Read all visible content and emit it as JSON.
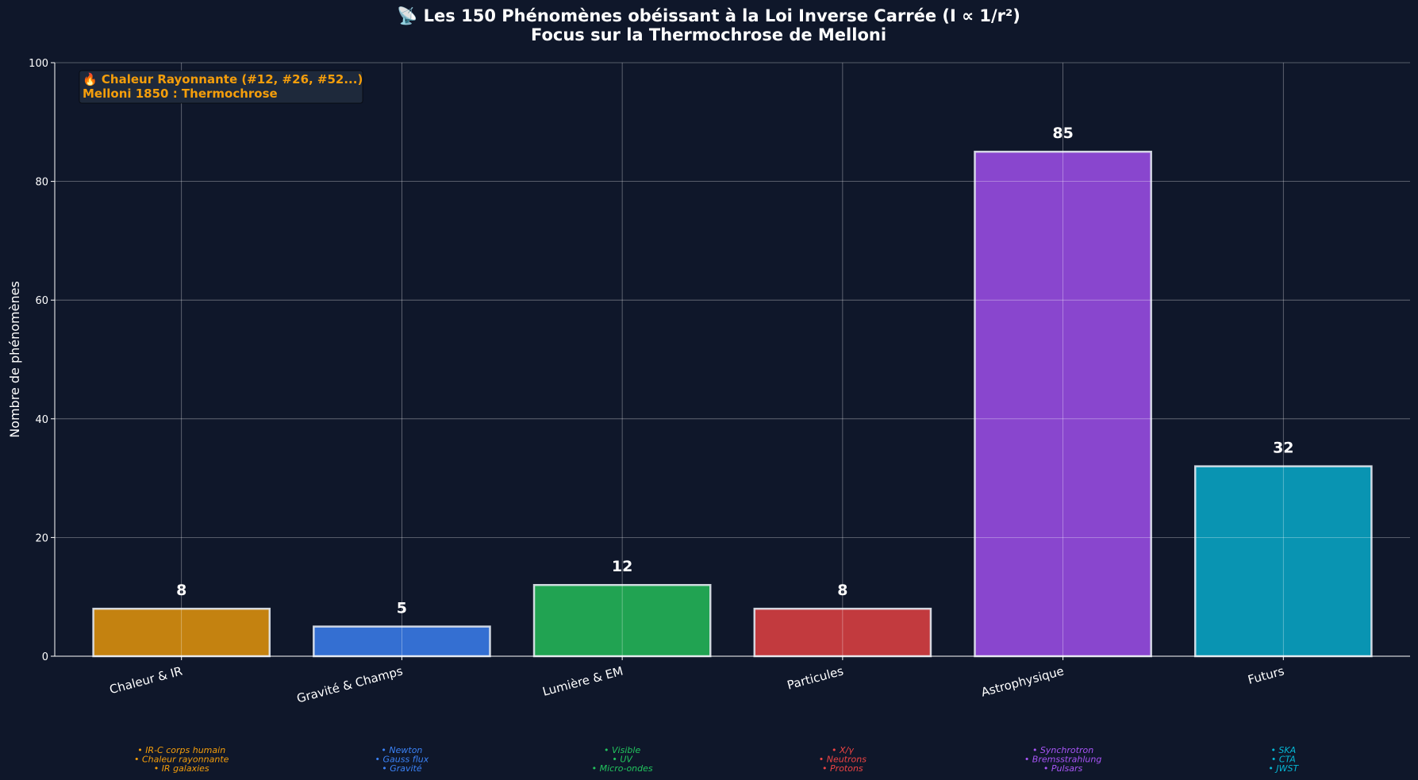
{
  "chart_data": {
    "type": "bar",
    "title": "📡 Les 150 Phénomènes obéissant à la Loi Inverse Carrée (I ∝ 1/r²)",
    "subtitle": "Focus sur la Thermochrose de Melloni",
    "ylabel": "Nombre de phénomènes",
    "ylim": [
      0,
      100
    ],
    "yticks": [
      "0",
      "20",
      "40",
      "60",
      "80",
      "100"
    ],
    "grid": true,
    "categories": [
      "Chaleur & IR",
      "Gravité & Champs",
      "Lumière & EM",
      "Particules",
      "Astrophysique",
      "Futurs"
    ],
    "values": [
      8,
      5,
      12,
      8,
      85,
      32
    ],
    "value_labels": [
      "8",
      "5",
      "12",
      "8",
      "85",
      "32"
    ],
    "colors": [
      "#c48210",
      "#346fd2",
      "#21a352",
      "#c23a3e",
      "#8946ce",
      "#0994b2"
    ],
    "sublabel_colors": [
      "#f59e0b",
      "#3b82f6",
      "#22c55e",
      "#ef4444",
      "#a855f7",
      "#06b6d4"
    ],
    "examples": [
      [
        "• IR-C corps humain",
        "• Chaleur rayonnante",
        "• IR galaxies"
      ],
      [
        "• Newton",
        "• Gauss flux",
        "• Gravité"
      ],
      [
        "• Visible",
        "• UV",
        "• Micro-ondes"
      ],
      [
        "• X/γ",
        "• Neutrons",
        "• Protons"
      ],
      [
        "• Synchrotron",
        "• Bremsstrahlung",
        "• Pulsars"
      ],
      [
        "• SKA",
        "• CTA",
        "• JWST"
      ]
    ],
    "annotation": [
      "🔥 Chaleur Rayonnante (#12, #26, #52...)",
      "Melloni 1850 : Thermochrose"
    ]
  }
}
